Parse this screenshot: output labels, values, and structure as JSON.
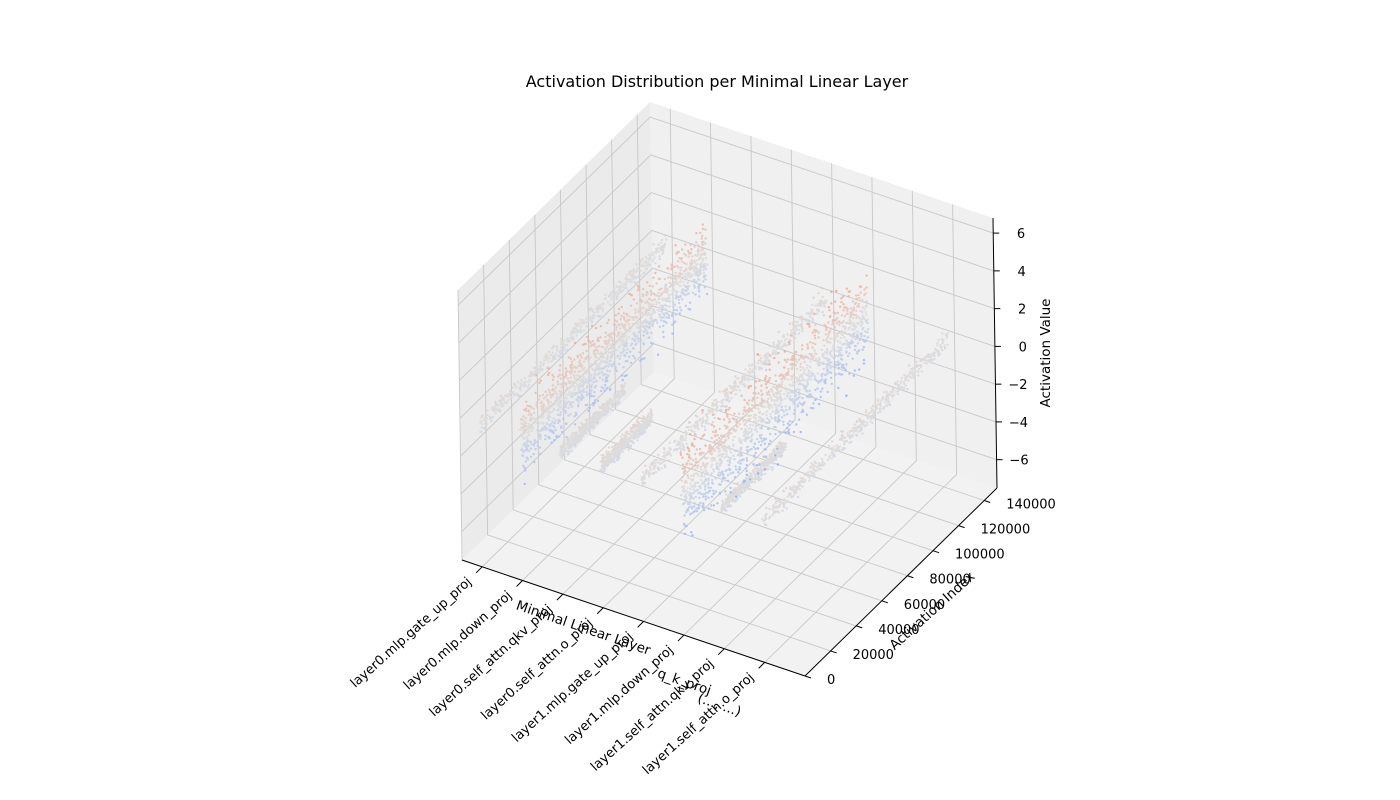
{
  "chart_data": {
    "type": "scatter",
    "projection": "3d",
    "title": "Activation Distribution per Minimal Linear Layer",
    "xlabel": "Minimal Linear Layer",
    "ylabel": "Activation Index",
    "zlabel": "Activation Value",
    "x_categories": [
      "layer0.mlp.gate_up_proj",
      "layer0.mlp.down_proj",
      "layer0.self_attn.qkv_proj",
      "layer0.self_attn.o_proj",
      "layer1.mlp.gate_up_proj",
      "layer1.mlp.down_proj",
      "layer1.self_attn.qkv_proj",
      "layer1.self_attn.o_proj"
    ],
    "overlap_label": "q_k_proj",
    "overlap_label2": "(..., ...)",
    "y_ticks": [
      0,
      20000,
      40000,
      60000,
      80000,
      100000,
      120000,
      140000
    ],
    "y_tick_labels": [
      "0",
      "20000",
      "40000",
      "60000",
      "80000",
      "100000",
      "120000",
      "140000"
    ],
    "z_ticks": [
      -6,
      -4,
      -2,
      0,
      2,
      4,
      6
    ],
    "z_tick_labels": [
      "−6",
      "−4",
      "−2",
      "0",
      "2",
      "4",
      "6"
    ],
    "xlim": [
      0,
      8.5
    ],
    "ylim": [
      0,
      150000
    ],
    "zlim": [
      -7.5,
      6.8
    ],
    "colormap": "coolwarm",
    "color_range": [
      -6,
      6
    ],
    "grid": true,
    "series": [
      {
        "layer_index": 0,
        "activation_count": 145000,
        "value_min": -0.9,
        "value_max": 0.9,
        "spread": 0.3
      },
      {
        "layer_index": 1,
        "activation_count": 145000,
        "value_min": -4.1,
        "value_max": 5.3,
        "spread": 1.2
      },
      {
        "layer_index": 2,
        "activation_count": 50000,
        "value_min": -0.7,
        "value_max": 0.7,
        "spread": 0.25
      },
      {
        "layer_index": 3,
        "activation_count": 40000,
        "value_min": -0.9,
        "value_max": 0.9,
        "spread": 0.3
      },
      {
        "layer_index": 4,
        "activation_count": 145000,
        "value_min": -1.2,
        "value_max": 1.2,
        "spread": 0.35
      },
      {
        "layer_index": 5,
        "activation_count": 145000,
        "value_min": -6.6,
        "value_max": 4.8,
        "spread": 1.6
      },
      {
        "layer_index": 6,
        "activation_count": 50000,
        "value_min": -0.8,
        "value_max": 0.8,
        "spread": 0.25
      },
      {
        "layer_index": 7,
        "activation_count": 145000,
        "value_min": -1.0,
        "value_max": 1.0,
        "spread": 0.3
      }
    ]
  }
}
